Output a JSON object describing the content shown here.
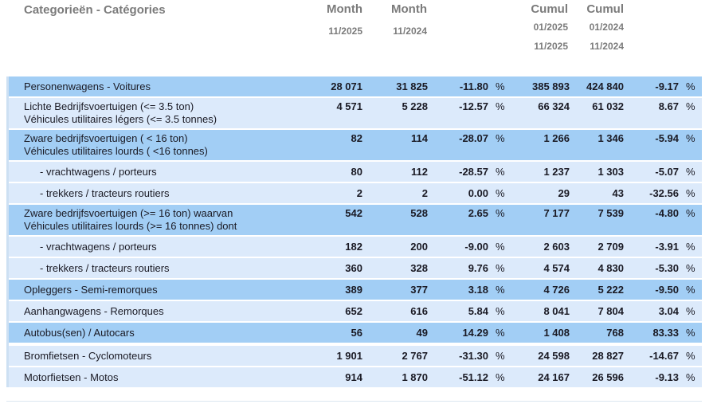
{
  "header": {
    "category_label": "Categorieën - Catégories",
    "columns": [
      {
        "title": "Month",
        "dates": [
          "11/2025"
        ]
      },
      {
        "title": "Month",
        "dates": [
          "11/2024"
        ]
      },
      {
        "title": "Cumul",
        "dates": [
          "01/2025",
          "11/2025"
        ]
      },
      {
        "title": "Cumul",
        "dates": [
          "01/2024",
          "11/2024"
        ]
      }
    ]
  },
  "percent_symbol": "%",
  "colors": {
    "row_dark": "#a2cef5",
    "row_light": "#dceafb",
    "header_text": "#7b7b7b",
    "body_text": "#1a1a24",
    "left_border": "#cde0f3",
    "bottom_line": "#dde7f1"
  },
  "rows": [
    {
      "label_lines": [
        "Personenwagens - Voitures"
      ],
      "indent": false,
      "shade": "dark",
      "gap_before": false,
      "month_current": "28 071",
      "month_previous": "31 825",
      "month_change": "-11.80",
      "cumul_current": "385 893",
      "cumul_previous": "424 840",
      "cumul_change": "-9.17"
    },
    {
      "label_lines": [
        "Lichte Bedrijfsvoertuigen (<= 3.5 ton)",
        "Véhicules utilitaires légers (<= 3.5 tonnes)"
      ],
      "indent": false,
      "shade": "light",
      "gap_before": false,
      "month_current": "4 571",
      "month_previous": "5 228",
      "month_change": "-12.57",
      "cumul_current": "66 324",
      "cumul_previous": "61 032",
      "cumul_change": "8.67"
    },
    {
      "label_lines": [
        "Zware bedrijfsvoertuigen ( < 16 ton)",
        "Véhicules utilitaires lourds ( <16 tonnes)"
      ],
      "indent": false,
      "shade": "dark",
      "gap_before": false,
      "month_current": "82",
      "month_previous": "114",
      "month_change": "-28.07",
      "cumul_current": "1 266",
      "cumul_previous": "1 346",
      "cumul_change": "-5.94"
    },
    {
      "label_lines": [
        "- vrachtwagens / porteurs"
      ],
      "indent": true,
      "shade": "light",
      "gap_before": false,
      "month_current": "80",
      "month_previous": "112",
      "month_change": "-28.57",
      "cumul_current": "1 237",
      "cumul_previous": "1 303",
      "cumul_change": "-5.07"
    },
    {
      "label_lines": [
        "- trekkers / tracteurs routiers"
      ],
      "indent": true,
      "shade": "light",
      "gap_before": false,
      "month_current": "2",
      "month_previous": "2",
      "month_change": "0.00",
      "cumul_current": "29",
      "cumul_previous": "43",
      "cumul_change": "-32.56"
    },
    {
      "label_lines": [
        "Zware bedrijfsvoertuigen (>= 16 ton) waarvan",
        "Véhicules utilitaires lourds (>= 16 tonnes) dont"
      ],
      "indent": false,
      "shade": "dark",
      "gap_before": false,
      "month_current": "542",
      "month_previous": "528",
      "month_change": "2.65",
      "cumul_current": "7 177",
      "cumul_previous": "7 539",
      "cumul_change": "-4.80"
    },
    {
      "label_lines": [
        "- vrachtwagens / porteurs"
      ],
      "indent": true,
      "shade": "light",
      "gap_before": false,
      "month_current": "182",
      "month_previous": "200",
      "month_change": "-9.00",
      "cumul_current": "2 603",
      "cumul_previous": "2 709",
      "cumul_change": "-3.91"
    },
    {
      "label_lines": [
        "- trekkers / tracteurs routiers"
      ],
      "indent": true,
      "shade": "light",
      "gap_before": false,
      "month_current": "360",
      "month_previous": "328",
      "month_change": "9.76",
      "cumul_current": "4 574",
      "cumul_previous": "4 830",
      "cumul_change": "-5.30"
    },
    {
      "label_lines": [
        "Opleggers - Semi-remorques"
      ],
      "indent": false,
      "shade": "dark",
      "gap_before": false,
      "month_current": "389",
      "month_previous": "377",
      "month_change": "3.18",
      "cumul_current": "4 726",
      "cumul_previous": "5 222",
      "cumul_change": "-9.50"
    },
    {
      "label_lines": [
        "Aanhangwagens - Remorques"
      ],
      "indent": false,
      "shade": "light",
      "gap_before": false,
      "month_current": "652",
      "month_previous": "616",
      "month_change": "5.84",
      "cumul_current": "8 041",
      "cumul_previous": "7 804",
      "cumul_change": "3.04"
    },
    {
      "label_lines": [
        "Autobus(sen) / Autocars"
      ],
      "indent": false,
      "shade": "dark",
      "gap_before": false,
      "month_current": "56",
      "month_previous": "49",
      "month_change": "14.29",
      "cumul_current": "1 408",
      "cumul_previous": "768",
      "cumul_change": "83.33"
    },
    {
      "label_lines": [
        "Bromfietsen - Cyclomoteurs"
      ],
      "indent": false,
      "shade": "light",
      "gap_before": true,
      "month_current": "1 901",
      "month_previous": "2 767",
      "month_change": "-31.30",
      "cumul_current": "24 598",
      "cumul_previous": "28 827",
      "cumul_change": "-14.67"
    },
    {
      "label_lines": [
        "Motorfietsen - Motos"
      ],
      "indent": false,
      "shade": "light",
      "gap_before": false,
      "month_current": "914",
      "month_previous": "1 870",
      "month_change": "-51.12",
      "cumul_current": "24 167",
      "cumul_previous": "26 596",
      "cumul_change": "-9.13"
    }
  ]
}
